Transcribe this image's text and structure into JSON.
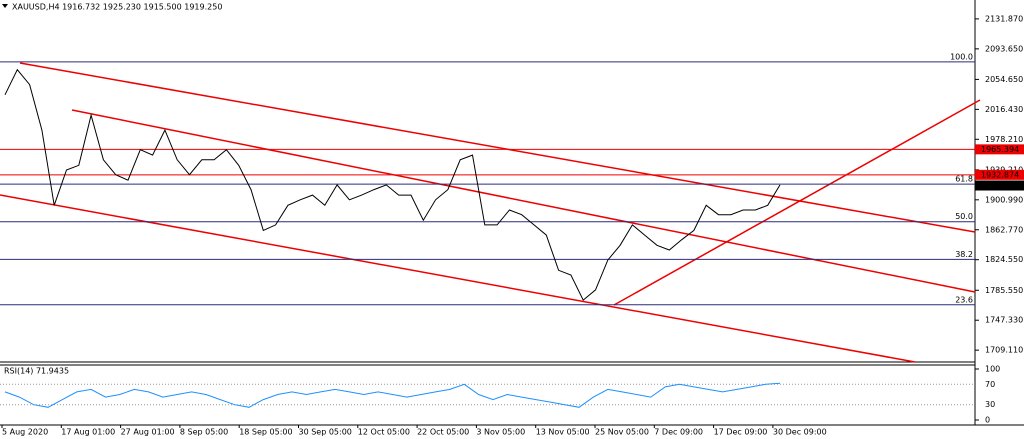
{
  "header": "XAUUSD,H4 1916.732 1925.230 1915.500 1919.250",
  "price_axis": {
    "ylim": [
      1694,
      2156
    ],
    "ticks": [
      {
        "value": 2131.87,
        "label": "2131.870"
      },
      {
        "value": 2093.65,
        "label": "2093.650"
      },
      {
        "value": 2054.65,
        "label": "2054.650"
      },
      {
        "value": 2016.43,
        "label": "2016.430"
      },
      {
        "value": 1978.21,
        "label": "1978.210"
      },
      {
        "value": 1939.21,
        "label": "1939.210"
      },
      {
        "value": 1900.99,
        "label": "1900.990"
      },
      {
        "value": 1862.77,
        "label": "1862.770"
      },
      {
        "value": 1824.55,
        "label": "1824.550"
      },
      {
        "value": 1785.55,
        "label": "1785.550"
      },
      {
        "value": 1747.33,
        "label": "1747.330"
      },
      {
        "value": 1709.11,
        "label": "1709.110"
      }
    ]
  },
  "price_series": {
    "color": "#000000",
    "values": [
      2035,
      2067,
      2048,
      1990,
      1894,
      1939,
      1945,
      2009,
      1952,
      1933,
      1926,
      1965,
      1958,
      1990,
      1952,
      1933,
      1952,
      1952,
      1965,
      1945,
      1914,
      1862,
      1869,
      1894,
      1901,
      1907,
      1894,
      1920,
      1901,
      1907,
      1914,
      1920,
      1907,
      1907,
      1875,
      1901,
      1914,
      1952,
      1958,
      1869,
      1869,
      1888,
      1882,
      1869,
      1856,
      1811,
      1805,
      1773,
      1786,
      1824,
      1843,
      1869,
      1856,
      1843,
      1837,
      1850,
      1862,
      1894,
      1882,
      1882,
      1888,
      1888,
      1894,
      1920
    ]
  },
  "fib_levels": [
    {
      "label": "100.0",
      "price": 2077
    },
    {
      "label": "61.8",
      "price": 1921
    },
    {
      "label": "50.0",
      "price": 1873
    },
    {
      "label": "38.2",
      "price": 1825
    },
    {
      "label": "23.6",
      "price": 1767
    }
  ],
  "lines": [
    1965.394,
    1932.874
  ],
  "current_price": {
    "value": 1919.25,
    "label": "1919.250"
  },
  "rsi": {
    "title": "RSI(14) 71.9435",
    "ylim": [
      0,
      100
    ],
    "ticks": [
      100,
      70,
      30,
      0
    ],
    "color": "#1e90ff",
    "values": [
      55,
      45,
      30,
      25,
      40,
      55,
      60,
      45,
      50,
      60,
      55,
      45,
      50,
      55,
      50,
      40,
      30,
      25,
      40,
      50,
      55,
      50,
      55,
      60,
      55,
      50,
      55,
      50,
      45,
      50,
      55,
      60,
      70,
      50,
      40,
      50,
      45,
      40,
      35,
      30,
      25,
      45,
      60,
      55,
      50,
      45,
      65,
      70,
      65,
      60,
      55,
      60,
      65,
      70,
      72
    ]
  },
  "time_labels": [
    "5 Aug 2020",
    "17 Aug 01:00",
    "27 Aug 01:00",
    "8 Sep 05:00",
    "18 Sep 05:00",
    "30 Sep 05:00",
    "12 Oct 05:00",
    "22 Oct 05:00",
    "3 Nov 05:00",
    "13 Nov 05:00",
    "25 Nov 05:00",
    "7 Dec 09:00",
    "17 Dec 09:00",
    "30 Dec 09:00"
  ]
}
